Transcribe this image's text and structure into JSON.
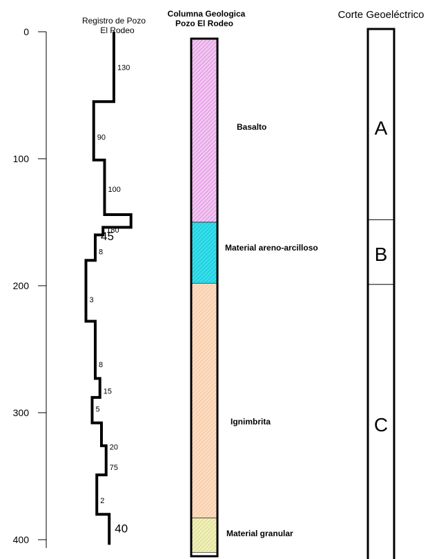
{
  "depth_axis": {
    "labels": [
      "0",
      "100",
      "200",
      "300",
      "400"
    ],
    "ticks": [
      0,
      100,
      200,
      300,
      400
    ],
    "range": [
      0,
      400
    ]
  },
  "well_log": {
    "title_line1": "Registro de Pozo",
    "title_line2": "El Rodeo",
    "readings": [
      {
        "label": "130",
        "depth": 28
      },
      {
        "label": "90",
        "depth": 83
      },
      {
        "label": "100",
        "depth": 124
      },
      {
        "label": "180",
        "depth": 156
      },
      {
        "label": "45",
        "depth": 162
      },
      {
        "label": "8",
        "depth": 173
      },
      {
        "label": "3",
        "depth": 211
      },
      {
        "label": "8",
        "depth": 262
      },
      {
        "label": "15",
        "depth": 283
      },
      {
        "label": "5",
        "depth": 297
      },
      {
        "label": "20",
        "depth": 327
      },
      {
        "label": "75",
        "depth": 343
      },
      {
        "label": "2",
        "depth": 369
      },
      {
        "label": "40",
        "depth": 392
      }
    ],
    "profile": [
      {
        "x": 0.0,
        "from": 0,
        "to": 55
      },
      {
        "x": -0.65,
        "from": 55,
        "to": 101
      },
      {
        "x": -0.3,
        "from": 101,
        "to": 144
      },
      {
        "x": 0.55,
        "from": 144,
        "to": 154
      },
      {
        "x": -0.35,
        "from": 154,
        "to": 160
      },
      {
        "x": -0.6,
        "from": 160,
        "to": 180
      },
      {
        "x": -0.9,
        "from": 180,
        "to": 228
      },
      {
        "x": -0.6,
        "from": 228,
        "to": 273
      },
      {
        "x": -0.45,
        "from": 273,
        "to": 288
      },
      {
        "x": -0.7,
        "from": 288,
        "to": 308
      },
      {
        "x": -0.4,
        "from": 308,
        "to": 326
      },
      {
        "x": -0.25,
        "from": 326,
        "to": 349
      },
      {
        "x": -0.55,
        "from": 349,
        "to": 380
      },
      {
        "x": -0.15,
        "from": 380,
        "to": 404
      }
    ]
  },
  "geologic_column": {
    "title_line1": "Columna Geologica",
    "title_line2": "Pozo El Rodeo",
    "layers": [
      {
        "name": "Basalto",
        "top": 0,
        "bottom": 150,
        "color": "#f2c6f2",
        "hatch": "#d070d0",
        "label_depth": 75
      },
      {
        "name": "Material areno-arcilloso",
        "top": 150,
        "bottom": 198,
        "color": "#33e0ee",
        "hatch": "#18a8b8",
        "label_depth": 170
      },
      {
        "name": "Ignimbrita",
        "top": 198,
        "bottom": 383,
        "color": "#fddcc0",
        "hatch": "#f0b890",
        "label_depth": 307
      },
      {
        "name": "Material granular",
        "top": 383,
        "bottom": 410,
        "color": "#f0f0b8",
        "hatch": "#c8c878",
        "label_depth": 395
      }
    ]
  },
  "geoelectric": {
    "title": "Corte Geoeléctrico",
    "units": [
      {
        "label": "A",
        "top": 0,
        "bottom": 148
      },
      {
        "label": "B",
        "top": 148,
        "bottom": 199
      },
      {
        "label": "C",
        "top": 199,
        "bottom": 420
      }
    ]
  }
}
